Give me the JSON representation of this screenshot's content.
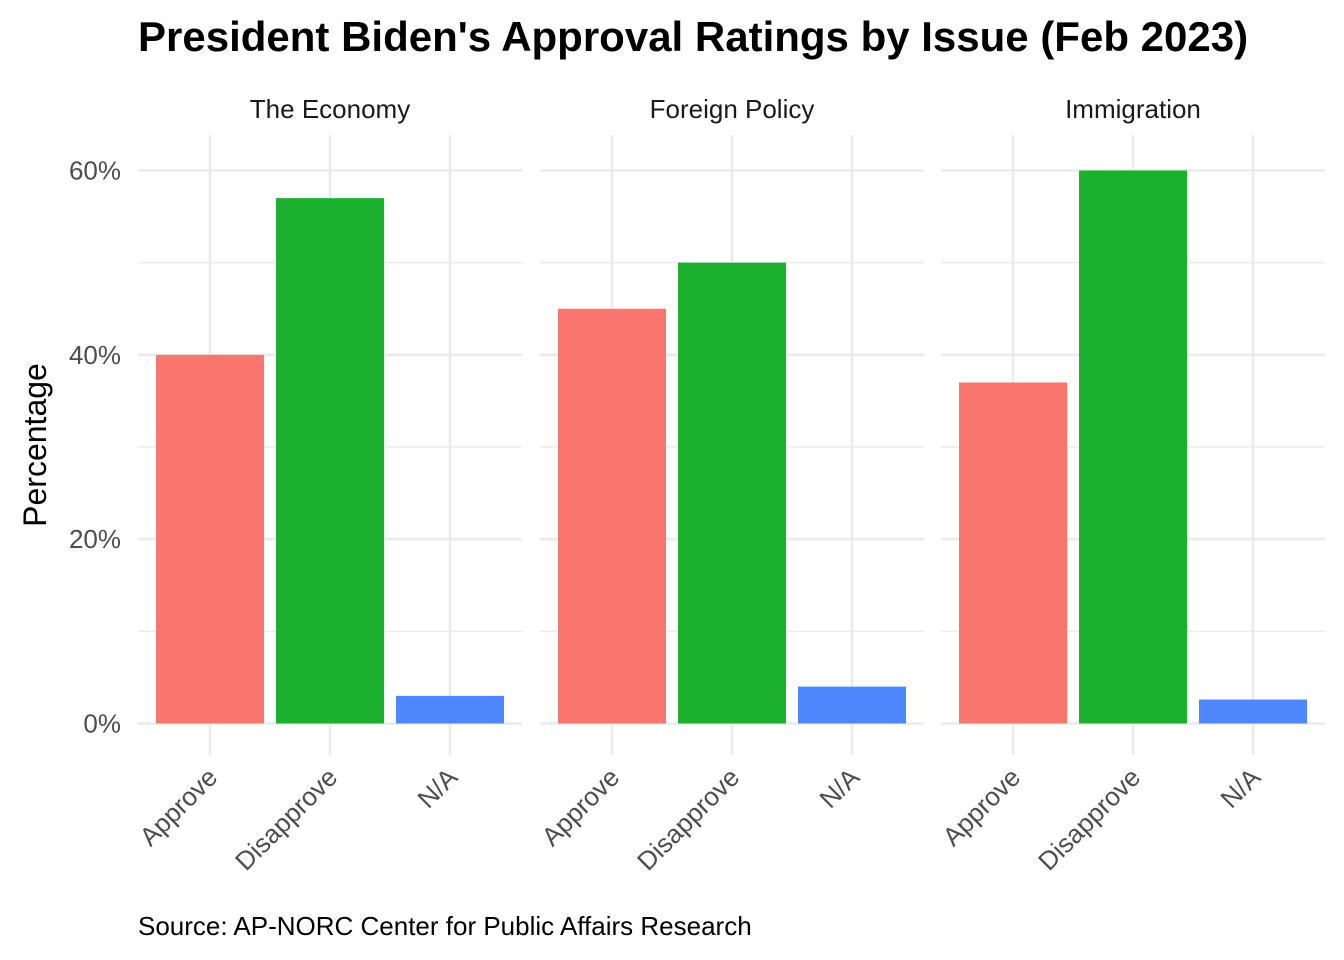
{
  "chart_data": {
    "type": "bar",
    "title": "President Biden's Approval Ratings by Issue (Feb 2023)",
    "ylabel": "Percentage",
    "xlabel": "",
    "caption": "Source: AP-NORC Center for Public Affairs Research",
    "ylim": [
      0,
      65
    ],
    "y_ticks": [
      0,
      20,
      40,
      60
    ],
    "y_tick_labels": [
      "0%",
      "20%",
      "40%",
      "60%"
    ],
    "grid": true,
    "legend": "none",
    "categories": [
      "Approve",
      "Disapprove",
      "N/A"
    ],
    "colors": {
      "Approve": "#F8766D",
      "Disapprove": "#1BB02E",
      "N/A": "#4F87FF"
    },
    "facets": [
      {
        "name": "The Economy",
        "values": [
          40,
          57,
          3
        ]
      },
      {
        "name": "Foreign Policy",
        "values": [
          45,
          50,
          4
        ]
      },
      {
        "name": "Immigration",
        "values": [
          37,
          60,
          2.6
        ]
      }
    ]
  }
}
